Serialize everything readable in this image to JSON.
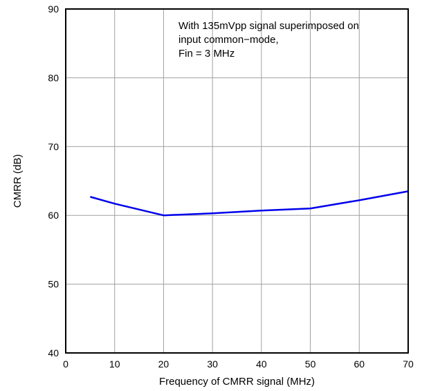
{
  "chart_data": {
    "type": "line",
    "title": "",
    "xlabel": "Frequency of CMRR signal (MHz)",
    "ylabel": "CMRR (dB)",
    "xlim": [
      0,
      70
    ],
    "ylim": [
      40,
      90
    ],
    "x_ticks": [
      0,
      10,
      20,
      30,
      40,
      50,
      60,
      70
    ],
    "y_ticks": [
      40,
      50,
      60,
      70,
      80,
      90
    ],
    "grid": true,
    "series": [
      {
        "x": [
          5,
          10,
          20,
          30,
          40,
          50,
          60,
          70
        ],
        "y": [
          62.7,
          61.7,
          60.0,
          60.3,
          60.7,
          61.0,
          62.2,
          63.5
        ],
        "color": "#0000ee"
      }
    ],
    "annotation": [
      "With 135mVpp signal superimposed on",
      "input common−mode,",
      "Fin = 3 MHz"
    ]
  }
}
